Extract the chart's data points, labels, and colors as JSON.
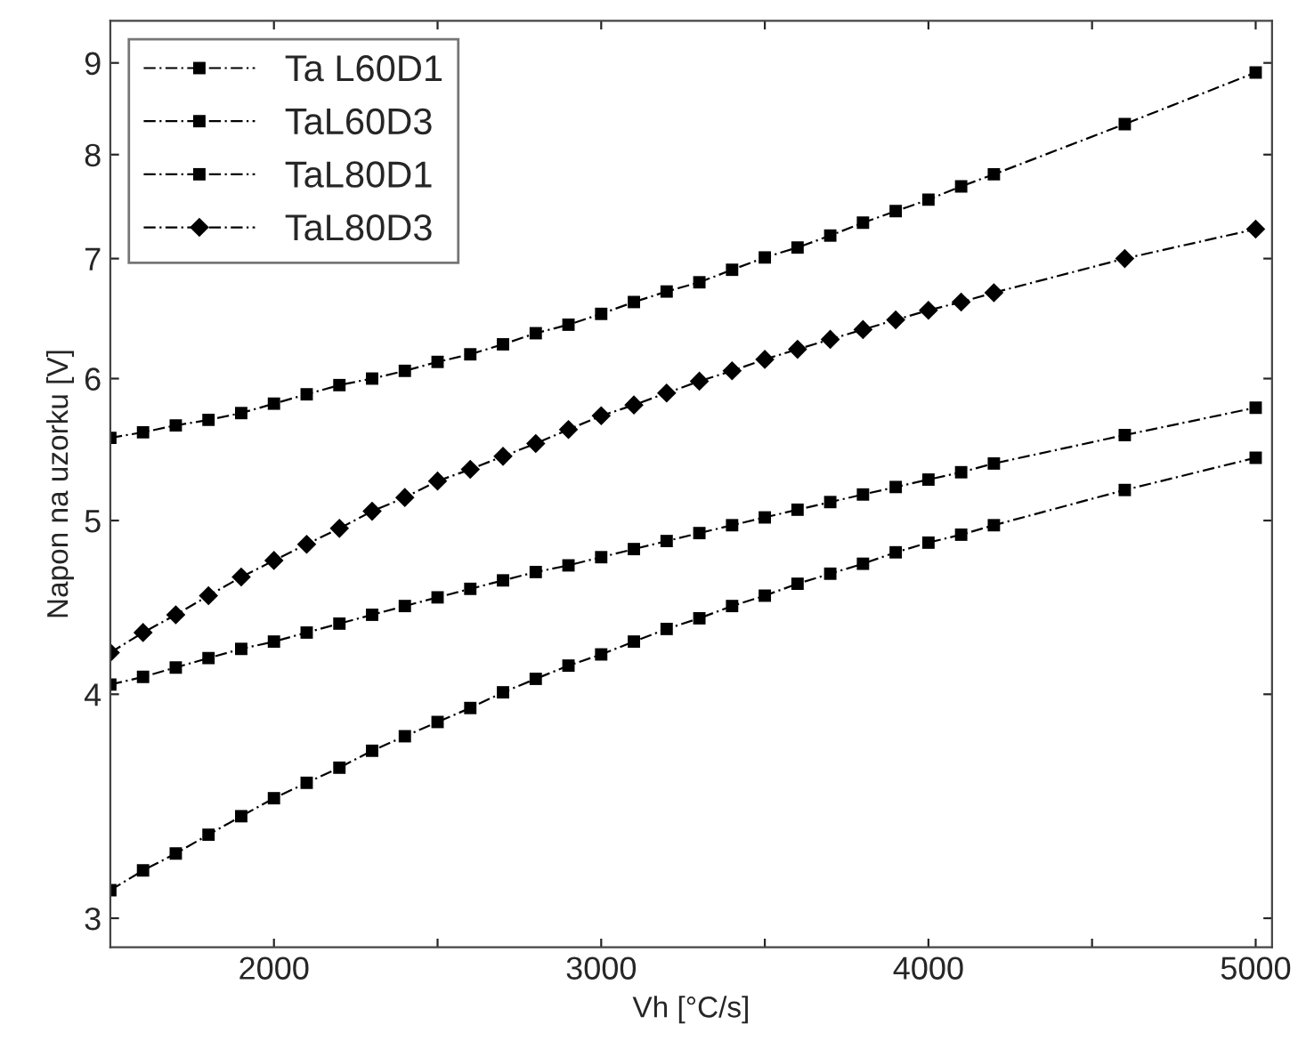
{
  "chart_data": {
    "type": "line",
    "xlabel": "Vh [°C/s]",
    "ylabel": "Napon na uzorku [V]",
    "x": [
      1500,
      1600,
      1700,
      1800,
      1900,
      2000,
      2100,
      2200,
      2300,
      2400,
      2500,
      2600,
      2700,
      2800,
      2900,
      3000,
      3100,
      3200,
      3300,
      3400,
      3500,
      3600,
      3700,
      3800,
      3900,
      4000,
      4100,
      4200,
      4600,
      5000
    ],
    "series": [
      {
        "name": "Ta L60D1",
        "color": "#000000",
        "marker": "square",
        "values": [
          5.56,
          5.6,
          5.65,
          5.69,
          5.74,
          5.81,
          5.88,
          5.95,
          6.0,
          6.06,
          6.13,
          6.19,
          6.27,
          6.36,
          6.43,
          6.52,
          6.62,
          6.71,
          6.79,
          6.9,
          7.01,
          7.1,
          7.21,
          7.33,
          7.44,
          7.55,
          7.68,
          7.8,
          8.32,
          8.89
        ]
      },
      {
        "name": "TaL60D3",
        "color": "#000000",
        "marker": "square",
        "values": [
          4.05,
          4.09,
          4.14,
          4.19,
          4.24,
          4.28,
          4.33,
          4.38,
          4.43,
          4.48,
          4.53,
          4.58,
          4.63,
          4.68,
          4.72,
          4.77,
          4.82,
          4.87,
          4.92,
          4.97,
          5.02,
          5.07,
          5.12,
          5.17,
          5.22,
          5.27,
          5.32,
          5.38,
          5.58,
          5.78
        ]
      },
      {
        "name": "TaL80D1",
        "color": "#000000",
        "marker": "square",
        "values": [
          3.11,
          3.19,
          3.26,
          3.34,
          3.42,
          3.5,
          3.57,
          3.64,
          3.72,
          3.79,
          3.86,
          3.93,
          4.01,
          4.08,
          4.15,
          4.21,
          4.28,
          4.35,
          4.41,
          4.48,
          4.54,
          4.61,
          4.67,
          4.73,
          4.8,
          4.86,
          4.91,
          4.97,
          5.2,
          5.42
        ]
      },
      {
        "name": "TaL80D3",
        "color": "#000000",
        "marker": "diamond",
        "values": [
          4.22,
          4.33,
          4.43,
          4.54,
          4.65,
          4.75,
          4.85,
          4.95,
          5.06,
          5.15,
          5.26,
          5.34,
          5.43,
          5.52,
          5.62,
          5.72,
          5.8,
          5.89,
          5.98,
          6.06,
          6.15,
          6.23,
          6.31,
          6.39,
          6.47,
          6.55,
          6.62,
          6.7,
          7.0,
          7.27
        ]
      }
    ],
    "line_style": "dashed",
    "log": "y",
    "xlim": [
      1500,
      5050
    ],
    "ylim": [
      2.89,
      9.5
    ],
    "xticks": [
      2000,
      {
        "value": 2500,
        "label": null
      },
      3000,
      {
        "value": 3500,
        "label": null
      },
      4000,
      {
        "value": 4500,
        "label": null
      },
      5000
    ],
    "yticks": [
      3,
      4,
      5,
      6,
      7,
      8,
      9
    ],
    "grid": false,
    "legend": "top left"
  }
}
